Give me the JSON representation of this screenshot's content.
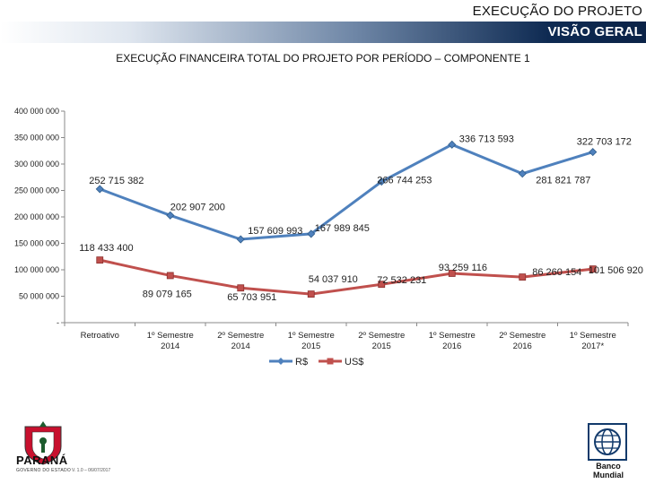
{
  "header": {
    "line1": "EXECUÇÃO DO PROJETO",
    "line2": "VISÃO GERAL"
  },
  "chart_data": {
    "type": "line",
    "title": "EXECUÇÃO FINANCEIRA TOTAL DO PROJETO POR PERÍODO – COMPONENTE 1",
    "xlabel": "",
    "ylabel": "",
    "ylim": [
      0,
      400000000
    ],
    "yticks": [
      {
        "value": 0,
        "label": "-"
      },
      {
        "value": 50000000,
        "label": "50 000 000"
      },
      {
        "value": 100000000,
        "label": "100 000 000"
      },
      {
        "value": 150000000,
        "label": "150 000 000"
      },
      {
        "value": 200000000,
        "label": "200 000 000"
      },
      {
        "value": 250000000,
        "label": "250 000 000"
      },
      {
        "value": 300000000,
        "label": "300 000 000"
      },
      {
        "value": 350000000,
        "label": "350 000 000"
      },
      {
        "value": 400000000,
        "label": "400 000 000"
      }
    ],
    "categories": [
      [
        "Retroativo"
      ],
      [
        "1º Semestre",
        "2014"
      ],
      [
        "2º Semestre",
        "2014"
      ],
      [
        "1º Semestre",
        "2015"
      ],
      [
        "2º Semestre",
        "2015"
      ],
      [
        "1º Semestre",
        "2016"
      ],
      [
        "2º Semestre",
        "2016"
      ],
      [
        "1º Semestre",
        "2017*"
      ]
    ],
    "series": [
      {
        "name": "R$",
        "color": "#4f81bd",
        "marker": "diamond",
        "values": [
          252715382,
          202907200,
          157609993,
          167989845,
          266744253,
          336713593,
          281821787,
          322703172
        ],
        "labels": [
          "252 715 382",
          "202 907 200",
          "157 609 993",
          "167 989 845",
          "266 744 253",
          "336 713 593",
          "281 821 787",
          "322 703 172"
        ]
      },
      {
        "name": "US$",
        "color": "#c0504d",
        "marker": "square",
        "values": [
          118433400,
          89079165,
          65703951,
          54037910,
          72532231,
          93259116,
          86260154,
          101506920
        ],
        "labels": [
          "118 433 400",
          "89 079 165",
          "65 703 951",
          "54 037 910",
          "72 532 231",
          "93 259 116",
          "86 260 154",
          "101 506 920"
        ]
      }
    ],
    "legend": "bottom"
  },
  "footer": {
    "left_logo": "PARANÁ",
    "left_subtitle": "GOVERNO DO ESTADO",
    "version": "V. 1.0 – 06/07/2017",
    "right_logo_line1": "Banco",
    "right_logo_line2": "Mundial"
  }
}
